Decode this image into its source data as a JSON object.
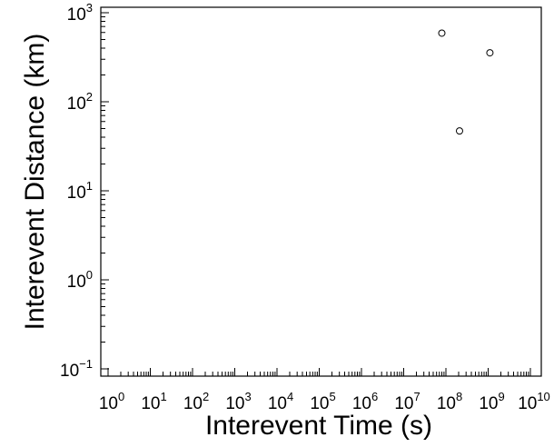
{
  "chart_data": {
    "type": "scatter",
    "xlabel": "Interevent Time (s)",
    "ylabel": "Interevent Distance (km)",
    "xscale": "log",
    "yscale": "log",
    "xlim": [
      1,
      10000000000
    ],
    "ylim": [
      0.1,
      1000
    ],
    "x_tick_exponents": [
      "0",
      "1",
      "2",
      "3",
      "4",
      "5",
      "6",
      "7",
      "8",
      "9",
      "10"
    ],
    "y_tick_exponents": [
      "−1",
      "0",
      "1",
      "2",
      "3"
    ],
    "tick_base": "10",
    "grid": false,
    "legend": "none",
    "marker": "open-circle",
    "marker_color": "#000000",
    "points": [
      {
        "x": 80000000,
        "y": 590
      },
      {
        "x": 1100000000,
        "y": 355
      },
      {
        "x": 210000000,
        "y": 47
      }
    ]
  }
}
